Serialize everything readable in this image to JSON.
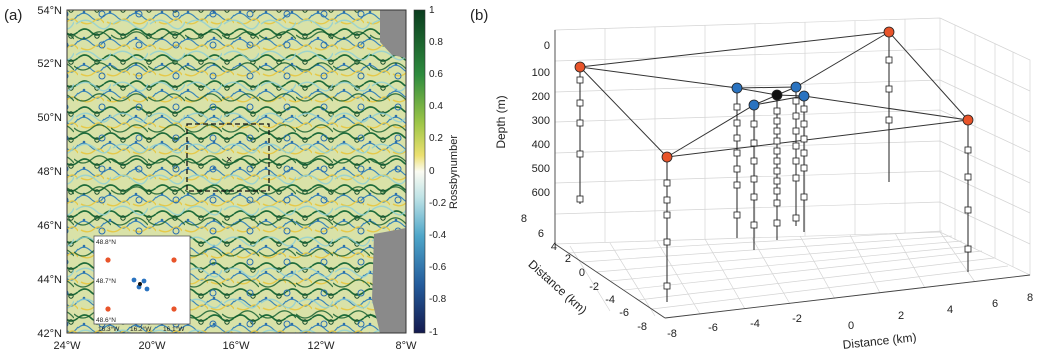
{
  "panel_a": {
    "label": "(a)",
    "lat_ticks": [
      "54°N",
      "52°N",
      "50°N",
      "48°N",
      "46°N",
      "44°N",
      "42°N"
    ],
    "lon_ticks": [
      "24°W",
      "20°W",
      "16°W",
      "12°W",
      "8°W"
    ],
    "colorbar_label": "Rossbynumber",
    "colorbar_ticks": [
      "1",
      "0.8",
      "0.6",
      "0.4",
      "0.2",
      "0",
      "-0.2",
      "-0.4",
      "-0.6",
      "-0.8",
      "-1"
    ],
    "colors": {
      "land": "#8a8a8a",
      "dark_green": "#0f5a2a",
      "yellow": "#e8d04a",
      "blue": "#2a6fb0",
      "dark_blue": "#16245e"
    },
    "inset": {
      "lat_ticks": [
        "48.8°N",
        "48.7°N",
        "48.6°N"
      ],
      "lon_ticks": [
        "16.3°W",
        "16.2°W",
        "16.1°W"
      ]
    }
  },
  "panel_b": {
    "label": "(b)",
    "zlabel": "Depth (m)",
    "ylabel": "Distance (km)",
    "xlabel": "Distance (km)",
    "z_ticks": [
      "0",
      "100",
      "200",
      "300",
      "400",
      "500",
      "600"
    ],
    "y_ticks": [
      "8",
      "6",
      "4",
      "2",
      "0",
      "-2",
      "-4",
      "-6",
      "-8"
    ],
    "x_ticks": [
      "-8",
      "-6",
      "-4",
      "-2",
      "0",
      "2",
      "4",
      "6",
      "8"
    ],
    "colors": {
      "outer": "#e8542a",
      "inner": "#2a73c0",
      "center": "#111111"
    }
  }
}
